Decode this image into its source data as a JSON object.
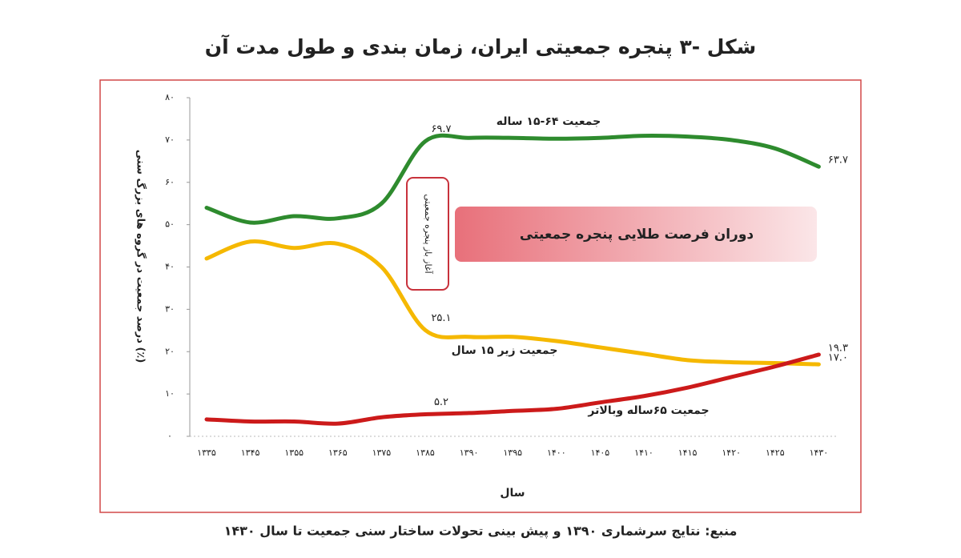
{
  "chart_data": {
    "type": "line",
    "title": "شکل -۳ پنجره جمعیتی ایران، زمان بندی و طول مدت آن",
    "source": "منبع: نتایج سرشماری ۱۳۹۰ و پیش بینی تحولات ساختار سنی جمعیت تا سال ۱۴۳۰",
    "y_label": "درصد جمعیت در گروه های بزرگ سنی (٪)",
    "x_label": "سال",
    "annotations": [
      "آغاز باز پنجره جمعیتی",
      "دوران فرصت طلایی پنجره جمعیتی"
    ],
    "categories": [
      "۱۳۳۵",
      "۱۳۴۵",
      "۱۳۵۵",
      "۱۳۶۵",
      "۱۳۷۵",
      "۱۳۸۵",
      "۱۳۹۰",
      "۱۳۹۵",
      "۱۴۰۰",
      "۱۴۰۵",
      "۱۴۱۰",
      "۱۴۱۵",
      "۱۴۲۰",
      "۱۴۲۵",
      "۱۴۳۰"
    ],
    "ylim": [
      0,
      80
    ],
    "yticks": [
      {
        "value": 0,
        "label": "۰"
      },
      {
        "value": 10,
        "label": "۱۰"
      },
      {
        "value": 20,
        "label": "۲۰"
      },
      {
        "value": 30,
        "label": "۳۰"
      },
      {
        "value": 40,
        "label": "۴۰"
      },
      {
        "value": 50,
        "label": "۵۰"
      },
      {
        "value": 60,
        "label": "۶۰"
      },
      {
        "value": 70,
        "label": "۷۰"
      },
      {
        "value": 80,
        "label": "۸۰"
      }
    ],
    "series": [
      {
        "name": "جمعیت ۶۴-۱۵ ساله",
        "color": "#2e8b2e",
        "values": [
          54,
          50.5,
          52,
          51.5,
          55,
          69.7,
          70.5,
          70.5,
          70.3,
          70.5,
          71,
          70.8,
          70,
          68,
          63.7
        ],
        "value_labels": [
          null,
          null,
          null,
          null,
          null,
          "۶۹.۷",
          null,
          null,
          null,
          null,
          null,
          null,
          null,
          null,
          "۶۳.۷"
        ]
      },
      {
        "name": "جمعیت زیر ۱۵ سال",
        "color": "#f5b800",
        "values": [
          42,
          46,
          44.5,
          45.5,
          40,
          25.1,
          23.5,
          23.5,
          22.5,
          21,
          19.5,
          18,
          17.5,
          17.3,
          17.0
        ],
        "value_labels": [
          null,
          null,
          null,
          null,
          null,
          "۲۵.۱",
          null,
          null,
          null,
          null,
          null,
          null,
          null,
          null,
          "۱۷.۰"
        ]
      },
      {
        "name": "جمعیت ۶۵ساله وبالاتر",
        "color": "#cc1a1a",
        "values": [
          4,
          3.5,
          3.5,
          3,
          4.5,
          5.2,
          5.5,
          6,
          6.5,
          8,
          9.5,
          11.5,
          14,
          16.5,
          19.3
        ],
        "value_labels": [
          null,
          null,
          null,
          null,
          null,
          "۵.۲",
          null,
          null,
          null,
          null,
          null,
          null,
          null,
          null,
          "۱۹.۳"
        ]
      }
    ]
  }
}
